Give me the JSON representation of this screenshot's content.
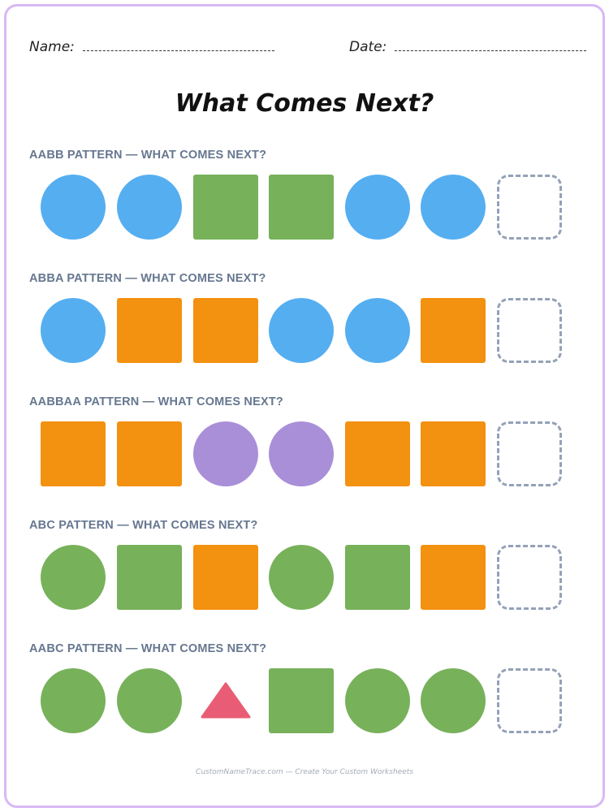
{
  "header": {
    "name_label": "Name:",
    "date_label": "Date:"
  },
  "title": "What Comes Next?",
  "colors": {
    "blue": "#55aef0",
    "green": "#77b15a",
    "orange": "#f39110",
    "purple": "#a98fd8",
    "red": "#e85d75",
    "frame": "#d9b8f5",
    "label": "#667790",
    "answer_border": "#94a1b8"
  },
  "rows": [
    {
      "label": "AABB PATTERN — WHAT COMES NEXT?",
      "shapes": [
        {
          "shape": "circle",
          "color": "blue"
        },
        {
          "shape": "circle",
          "color": "blue"
        },
        {
          "shape": "square",
          "color": "green"
        },
        {
          "shape": "square",
          "color": "green"
        },
        {
          "shape": "circle",
          "color": "blue"
        },
        {
          "shape": "circle",
          "color": "blue"
        }
      ]
    },
    {
      "label": "ABBA PATTERN — WHAT COMES NEXT?",
      "shapes": [
        {
          "shape": "circle",
          "color": "blue"
        },
        {
          "shape": "square",
          "color": "orange"
        },
        {
          "shape": "square",
          "color": "orange"
        },
        {
          "shape": "circle",
          "color": "blue"
        },
        {
          "shape": "circle",
          "color": "blue"
        },
        {
          "shape": "square",
          "color": "orange"
        }
      ]
    },
    {
      "label": "AABBAA PATTERN — WHAT COMES NEXT?",
      "shapes": [
        {
          "shape": "square",
          "color": "orange"
        },
        {
          "shape": "square",
          "color": "orange"
        },
        {
          "shape": "circle",
          "color": "purple"
        },
        {
          "shape": "circle",
          "color": "purple"
        },
        {
          "shape": "square",
          "color": "orange"
        },
        {
          "shape": "square",
          "color": "orange"
        }
      ]
    },
    {
      "label": "ABC PATTERN — WHAT COMES NEXT?",
      "shapes": [
        {
          "shape": "circle",
          "color": "green"
        },
        {
          "shape": "square",
          "color": "green"
        },
        {
          "shape": "square",
          "color": "orange"
        },
        {
          "shape": "circle",
          "color": "green"
        },
        {
          "shape": "square",
          "color": "green"
        },
        {
          "shape": "square",
          "color": "orange"
        }
      ]
    },
    {
      "label": "AABC PATTERN — WHAT COMES NEXT?",
      "shapes": [
        {
          "shape": "circle",
          "color": "green"
        },
        {
          "shape": "circle",
          "color": "green"
        },
        {
          "shape": "triangle",
          "color": "red"
        },
        {
          "shape": "square",
          "color": "green"
        },
        {
          "shape": "circle",
          "color": "green"
        },
        {
          "shape": "circle",
          "color": "green"
        }
      ]
    }
  ],
  "footer": "CustomNameTrace.com — Create Your Custom Worksheets"
}
